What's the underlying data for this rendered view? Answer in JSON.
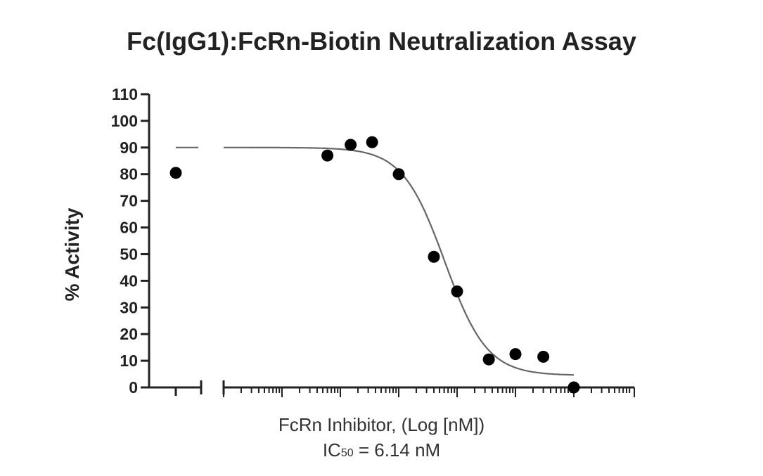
{
  "chart_data": {
    "type": "scatter",
    "title": "Fc(IgG1):FcRn-Biotin Neutralization Assay",
    "ylabel": "% Activity",
    "xlabel": "FcRn Inhibitor, (Log [nM])",
    "annotation": {
      "prefix": "IC",
      "subscript": "50",
      "suffix": " = 6.14 nM"
    },
    "ylim": [
      0,
      110
    ],
    "yticks": [
      "0",
      "10",
      "20",
      "30",
      "40",
      "50",
      "60",
      "70",
      "80",
      "90",
      "100",
      "110"
    ],
    "x_scale": "log",
    "xlim_nM": [
      0.001,
      1000
    ],
    "x_axis_segmented": true,
    "control": {
      "label": "",
      "value": 80.5,
      "fit_value": 90
    },
    "points": [
      {
        "x": 0.06,
        "y": 87
      },
      {
        "x": 0.15,
        "y": 91
      },
      {
        "x": 0.35,
        "y": 92
      },
      {
        "x": 1.0,
        "y": 80
      },
      {
        "x": 4.0,
        "y": 49
      },
      {
        "x": 10.0,
        "y": 36
      },
      {
        "x": 35.0,
        "y": 10.5
      },
      {
        "x": 100.0,
        "y": 12.5
      },
      {
        "x": 300.0,
        "y": 11.5
      },
      {
        "x": 1000.0,
        "y": 0
      }
    ],
    "fit": {
      "model": "four-parameter logistic",
      "top": 90,
      "bottom": 4.5,
      "ic50_nM": 6.14,
      "hill_slope": -1.2,
      "x_start_nM": 0.001,
      "x_end_nM": 1000
    },
    "grid": false,
    "legend": "none"
  }
}
